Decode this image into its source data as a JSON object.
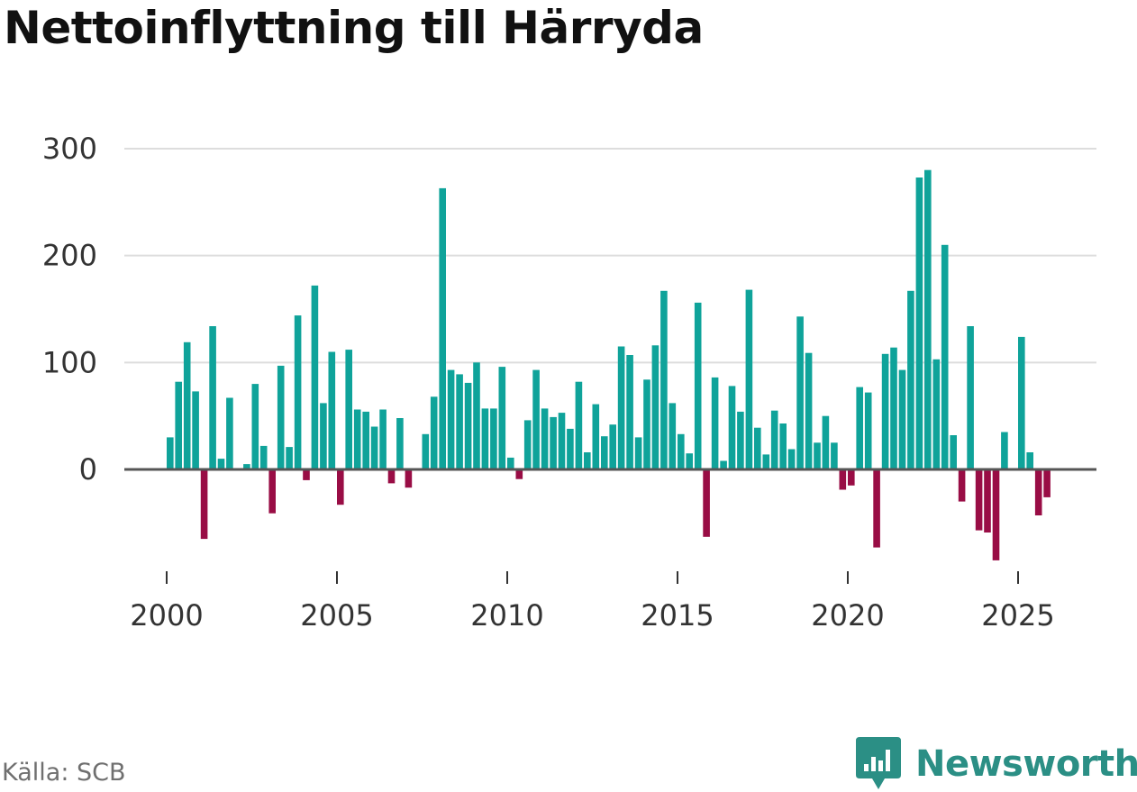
{
  "title": "Nettoinflyttning till Härryda",
  "source": "Källa: SCB",
  "brand": "Newsworthy",
  "colors": {
    "positive": "#0fa39a",
    "negative": "#990d45",
    "grid": "#dddddd",
    "zero": "#555555",
    "brand": "#2b8f85"
  },
  "chart_data": {
    "type": "bar",
    "title": "Nettoinflyttning till Härryda",
    "xlabel": "",
    "ylabel": "",
    "ylim": [
      -85,
      300
    ],
    "yticks": [
      0,
      100,
      200,
      300
    ],
    "xticks": [
      "2000",
      "2005",
      "2010",
      "2015",
      "2020",
      "2025"
    ],
    "x_start_year": 2000,
    "interval": "quarterly",
    "values": [
      30,
      82,
      119,
      73,
      -65,
      134,
      10,
      67,
      0,
      5,
      80,
      22,
      -41,
      97,
      21,
      144,
      -10,
      172,
      62,
      110,
      -33,
      112,
      56,
      54,
      40,
      56,
      -13,
      48,
      -17,
      0,
      33,
      68,
      263,
      93,
      89,
      81,
      100,
      57,
      57,
      96,
      11,
      -9,
      46,
      93,
      57,
      49,
      53,
      38,
      82,
      16,
      61,
      31,
      42,
      115,
      107,
      30,
      84,
      116,
      167,
      62,
      33,
      15,
      156,
      -63,
      86,
      8,
      78,
      54,
      168,
      39,
      14,
      55,
      43,
      19,
      143,
      109,
      25,
      50,
      25,
      -19,
      -15,
      77,
      72,
      -73,
      108,
      114,
      93,
      167,
      273,
      280,
      103,
      210,
      32,
      -30,
      134,
      -57,
      -59,
      -85,
      35,
      0,
      124,
      16,
      -43,
      -26
    ]
  }
}
